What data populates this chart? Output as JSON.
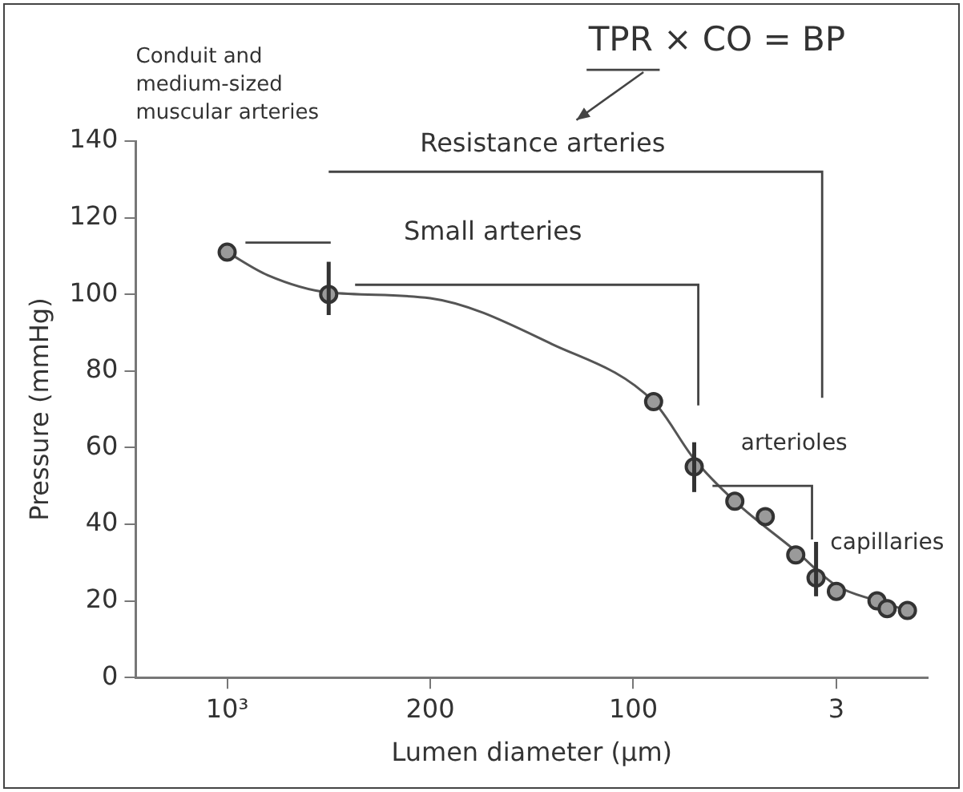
{
  "chart_data": {
    "type": "scatter",
    "xlabel": "Lumen diameter (μm)",
    "ylabel": "Pressure (mmHg)",
    "categories": [
      null,
      null,
      null,
      null,
      null,
      null,
      null,
      null,
      null,
      "10³",
      null,
      null,
      null,
      null,
      null,
      null,
      null,
      null,
      null,
      null,
      null,
      null,
      null,
      null,
      null,
      null,
      null,
      null,
      null,
      "200",
      null,
      null,
      null,
      null,
      null,
      null,
      null,
      null,
      null,
      null,
      null,
      null,
      null,
      null,
      null,
      null,
      null,
      null,
      null,
      "100",
      null,
      null,
      null,
      null,
      null,
      null,
      null,
      null,
      null,
      null,
      null,
      null,
      null,
      null,
      null,
      null,
      null,
      null,
      null,
      "3",
      null,
      null,
      null,
      null,
      null,
      null,
      null,
      null,
      null
    ],
    "ylim": [
      0,
      140
    ],
    "yticks": [
      0,
      20,
      40,
      60,
      80,
      100,
      120,
      140
    ],
    "grid": false,
    "legend": false,
    "annotations": [
      "Conduit and medium-sized muscular arteries",
      "TPR × CO = BP",
      "Resistance arteries",
      "Small arteries",
      "arterioles",
      "capillaries"
    ],
    "series": [
      {
        "marker": "circle",
        "color": "#333333",
        "values": [
          null,
          null,
          null,
          null,
          null,
          null,
          null,
          null,
          null,
          111,
          null,
          null,
          null,
          null,
          null,
          null,
          null,
          null,
          null,
          100,
          null,
          null,
          null,
          null,
          null,
          null,
          null,
          null,
          null,
          null,
          null,
          null,
          null,
          null,
          null,
          null,
          null,
          null,
          null,
          null,
          null,
          null,
          null,
          null,
          null,
          null,
          null,
          null,
          null,
          null,
          null,
          72,
          null,
          null,
          null,
          55,
          null,
          null,
          null,
          46,
          null,
          null,
          42,
          null,
          null,
          32,
          null,
          26,
          null,
          22.5,
          null,
          null,
          null,
          20,
          18,
          null,
          17.5,
          null,
          null
        ],
        "errors": [
          null,
          null,
          null,
          null,
          null,
          null,
          null,
          null,
          null,
          null,
          null,
          null,
          null,
          null,
          null,
          null,
          null,
          null,
          null,
          [
            94.6,
            108.5
          ],
          null,
          null,
          null,
          null,
          null,
          null,
          null,
          null,
          null,
          null,
          null,
          null,
          null,
          null,
          null,
          null,
          null,
          null,
          null,
          null,
          null,
          null,
          null,
          null,
          null,
          null,
          null,
          null,
          null,
          null,
          null,
          null,
          null,
          null,
          null,
          [
            48.4,
            61.4
          ],
          null,
          null,
          null,
          null,
          null,
          null,
          null,
          null,
          null,
          null,
          null,
          [
            21.2,
            35.4
          ],
          null,
          null,
          null,
          null,
          null,
          null,
          null,
          null,
          null,
          null,
          null
        ]
      },
      {
        "type": "line",
        "marker": "none",
        "color": "#555555",
        "values": [
          null,
          null,
          null,
          null,
          null,
          null,
          null,
          null,
          null,
          111,
          null,
          null,
          null,
          105,
          null,
          null,
          null,
          null,
          null,
          100.5,
          null,
          null,
          null,
          null,
          null,
          null,
          null,
          null,
          null,
          99,
          null,
          null,
          null,
          null,
          null,
          null,
          null,
          null,
          null,
          null,
          null,
          87,
          null,
          null,
          null,
          null,
          null,
          null,
          null,
          null,
          null,
          72,
          null,
          null,
          null,
          57,
          null,
          null,
          null,
          46,
          null,
          null,
          null,
          null,
          null,
          33,
          null,
          null,
          null,
          24,
          null,
          null,
          null,
          20,
          null,
          null,
          17.5,
          null,
          null
        ]
      }
    ]
  }
}
